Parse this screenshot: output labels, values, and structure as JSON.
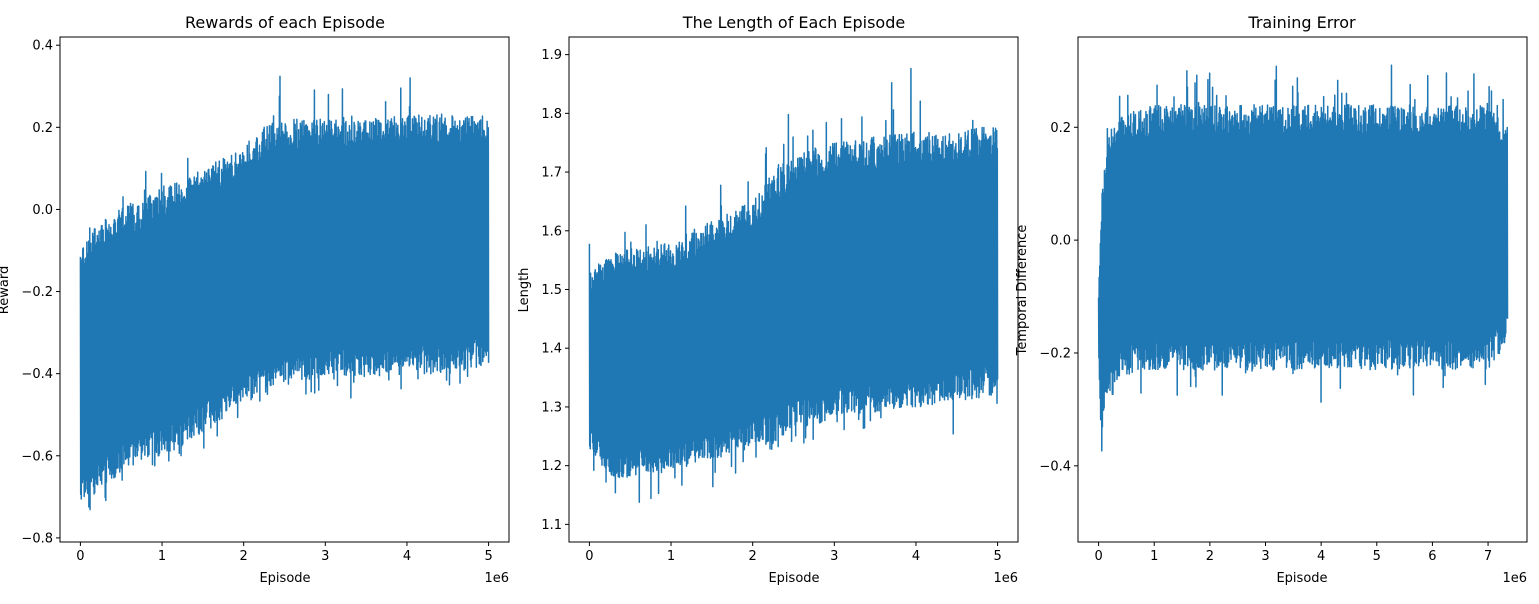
{
  "chart_data": [
    {
      "type": "line",
      "title": "Rewards of each Episode",
      "xlabel": "Episode",
      "ylabel": "Reward",
      "x_offset_label": "1e6",
      "xlim": [
        -0.25,
        5.25
      ],
      "ylim": [
        -0.81,
        0.42
      ],
      "xticks": [
        0,
        1,
        2,
        3,
        4,
        5
      ],
      "yticks": [
        -0.8,
        -0.6,
        -0.4,
        -0.2,
        0.0,
        0.2,
        0.4
      ],
      "xtick_labels": [
        "0",
        "1",
        "2",
        "3",
        "4",
        "5"
      ],
      "ytick_labels": [
        "−0.8",
        "−0.6",
        "−0.4",
        "−0.2",
        "0.0",
        "0.2",
        "0.4"
      ],
      "color": "#1f77b4",
      "grid": false,
      "envelope": {
        "x": [
          0.0,
          0.25,
          0.5,
          1.0,
          1.5,
          2.0,
          2.25,
          2.5,
          3.0,
          3.5,
          4.0,
          4.5,
          5.0
        ],
        "upper": [
          -0.1,
          -0.02,
          0.0,
          0.06,
          0.1,
          0.15,
          0.2,
          0.22,
          0.22,
          0.22,
          0.23,
          0.23,
          0.23
        ],
        "lower": [
          -0.72,
          -0.68,
          -0.64,
          -0.6,
          -0.55,
          -0.46,
          -0.44,
          -0.42,
          -0.41,
          -0.41,
          -0.4,
          -0.4,
          -0.38
        ],
        "upper_peak": [
          -0.09,
          0.04,
          0.06,
          0.14,
          0.15,
          0.2,
          0.21,
          0.36,
          0.3,
          0.3,
          0.32,
          0.33,
          0.33
        ],
        "lower_peak": [
          -0.73,
          -0.75,
          -0.69,
          -0.62,
          -0.6,
          -0.5,
          -0.46,
          -0.44,
          -0.46,
          -0.48,
          -0.46,
          -0.48,
          -0.44
        ]
      }
    },
    {
      "type": "line",
      "title": "The Length of Each Episode",
      "xlabel": "Episode",
      "ylabel": "Length",
      "x_offset_label": "1e6",
      "xlim": [
        -0.25,
        5.25
      ],
      "ylim": [
        1.07,
        1.93
      ],
      "xticks": [
        0,
        1,
        2,
        3,
        4,
        5
      ],
      "yticks": [
        1.1,
        1.2,
        1.3,
        1.4,
        1.5,
        1.6,
        1.7,
        1.8,
        1.9
      ],
      "xtick_labels": [
        "0",
        "1",
        "2",
        "3",
        "4",
        "5"
      ],
      "ytick_labels": [
        "1.1",
        "1.2",
        "1.3",
        "1.4",
        "1.5",
        "1.6",
        "1.7",
        "1.8",
        "1.9"
      ],
      "color": "#1f77b4",
      "grid": false,
      "envelope": {
        "x": [
          0.0,
          0.25,
          0.5,
          1.0,
          1.5,
          2.0,
          2.25,
          2.5,
          3.0,
          3.5,
          4.0,
          4.5,
          5.0
        ],
        "upper": [
          1.53,
          1.56,
          1.57,
          1.58,
          1.62,
          1.65,
          1.7,
          1.73,
          1.75,
          1.76,
          1.77,
          1.77,
          1.78
        ],
        "lower": [
          1.23,
          1.18,
          1.18,
          1.19,
          1.21,
          1.23,
          1.24,
          1.26,
          1.28,
          1.29,
          1.3,
          1.31,
          1.32
        ],
        "upper_peak": [
          1.6,
          1.63,
          1.62,
          1.63,
          1.68,
          1.71,
          1.76,
          1.82,
          1.83,
          1.86,
          1.88,
          1.89,
          1.8
        ],
        "lower_peak": [
          1.2,
          1.16,
          1.11,
          1.15,
          1.15,
          1.2,
          1.22,
          1.22,
          1.25,
          1.26,
          1.24,
          1.24,
          1.26
        ]
      }
    },
    {
      "type": "line",
      "title": "Training Error",
      "xlabel": "Episode",
      "ylabel": "Temporal Difference",
      "x_offset_label": "1e6",
      "xlim": [
        -0.37,
        7.7
      ],
      "ylim": [
        -0.535,
        0.36
      ],
      "xticks": [
        0,
        1,
        2,
        3,
        4,
        5,
        6,
        7
      ],
      "yticks": [
        -0.4,
        -0.2,
        0.0,
        0.2
      ],
      "xtick_labels": [
        "0",
        "1",
        "2",
        "3",
        "4",
        "5",
        "6",
        "7"
      ],
      "ytick_labels": [
        "−0.4",
        "−0.2",
        "0.0",
        "0.2"
      ],
      "color": "#1f77b4",
      "grid": false,
      "envelope": {
        "x": [
          0.0,
          0.04,
          0.1,
          0.2,
          0.4,
          1.0,
          2.0,
          3.0,
          4.0,
          5.0,
          6.0,
          7.0,
          7.35
        ],
        "upper": [
          -0.1,
          0.05,
          0.14,
          0.2,
          0.22,
          0.24,
          0.24,
          0.24,
          0.24,
          0.24,
          0.24,
          0.24,
          0.2
        ],
        "lower": [
          -0.2,
          -0.38,
          -0.3,
          -0.26,
          -0.24,
          -0.23,
          -0.23,
          -0.23,
          -0.23,
          -0.23,
          -0.23,
          -0.23,
          -0.18
        ],
        "upper_peak": [
          0.0,
          0.14,
          0.17,
          0.26,
          0.29,
          0.3,
          0.3,
          0.32,
          0.32,
          0.32,
          0.32,
          0.33,
          0.26
        ],
        "lower_peak": [
          -0.3,
          -0.5,
          -0.35,
          -0.28,
          -0.27,
          -0.28,
          -0.28,
          -0.28,
          -0.29,
          -0.29,
          -0.28,
          -0.28,
          -0.25
        ]
      }
    }
  ]
}
